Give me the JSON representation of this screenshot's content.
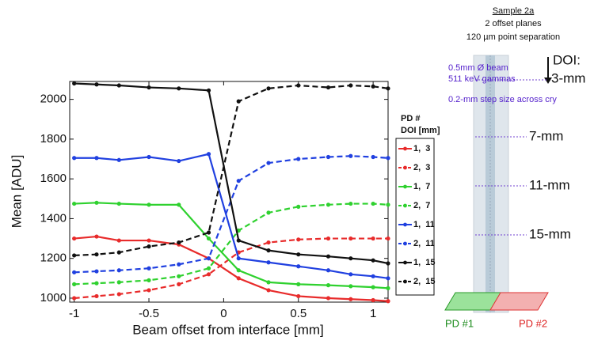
{
  "chart_data": {
    "type": "line",
    "x_label": "Beam offset from interface [mm]",
    "y_label": "Mean [ADU]",
    "x": [
      -1,
      -0.85,
      -0.7,
      -0.5,
      -0.3,
      -0.1,
      0.1,
      0.3,
      0.5,
      0.7,
      0.85,
      1.0,
      1.1
    ],
    "xlim": [
      -1.03,
      1.1
    ],
    "ylim": [
      980,
      2090
    ],
    "xticks": [
      -1,
      -0.5,
      0,
      0.5,
      1
    ],
    "yticks": [
      1000,
      1200,
      1400,
      1600,
      1800,
      2000
    ],
    "legend_header": [
      "PD #",
      "DOI [mm]"
    ],
    "series": [
      {
        "name": "1,  3",
        "color": "#e82b2b",
        "dashed": false,
        "values": [
          1300,
          1310,
          1290,
          1290,
          1270,
          1200,
          1100,
          1040,
          1010,
          1000,
          995,
          990,
          985
        ]
      },
      {
        "name": "2,  3",
        "color": "#e82b2b",
        "dashed": true,
        "values": [
          1000,
          1010,
          1020,
          1040,
          1070,
          1120,
          1230,
          1280,
          1295,
          1300,
          1300,
          1300,
          1300
        ]
      },
      {
        "name": "1,  7",
        "color": "#2fd12f",
        "dashed": false,
        "values": [
          1475,
          1480,
          1475,
          1470,
          1470,
          1300,
          1140,
          1080,
          1070,
          1065,
          1060,
          1055,
          1050
        ]
      },
      {
        "name": "2,  7",
        "color": "#2fd12f",
        "dashed": true,
        "values": [
          1070,
          1075,
          1080,
          1090,
          1110,
          1150,
          1340,
          1430,
          1460,
          1470,
          1475,
          1475,
          1470
        ]
      },
      {
        "name": "1,  11",
        "color": "#2040e0",
        "dashed": false,
        "values": [
          1705,
          1705,
          1695,
          1710,
          1690,
          1725,
          1200,
          1180,
          1160,
          1140,
          1120,
          1110,
          1100
        ]
      },
      {
        "name": "2,  11",
        "color": "#2040e0",
        "dashed": true,
        "values": [
          1130,
          1135,
          1140,
          1150,
          1170,
          1200,
          1590,
          1680,
          1700,
          1710,
          1715,
          1710,
          1705
        ]
      },
      {
        "name": "1,  15",
        "color": "#111111",
        "dashed": false,
        "values": [
          2080,
          2075,
          2070,
          2060,
          2055,
          2045,
          1290,
          1240,
          1220,
          1210,
          1200,
          1190,
          1175
        ]
      },
      {
        "name": "2,  15",
        "color": "#111111",
        "dashed": true,
        "values": [
          1215,
          1220,
          1230,
          1260,
          1280,
          1330,
          1990,
          2055,
          2070,
          2060,
          2070,
          2065,
          2055
        ]
      }
    ]
  },
  "diagram": {
    "sample": "Sample 2a",
    "planes": "2 offset planes",
    "separation": "120 µm point separation",
    "beam": "0.5mm Ø beam",
    "gammas": "511 keV gammas",
    "step": "0.2-mm step size across cry",
    "doi_title": "DOI:",
    "doi_labels": [
      "3-mm",
      "7-mm",
      "11-mm",
      "15-mm"
    ],
    "pd1": "PD #1",
    "pd2": "PD #2"
  }
}
